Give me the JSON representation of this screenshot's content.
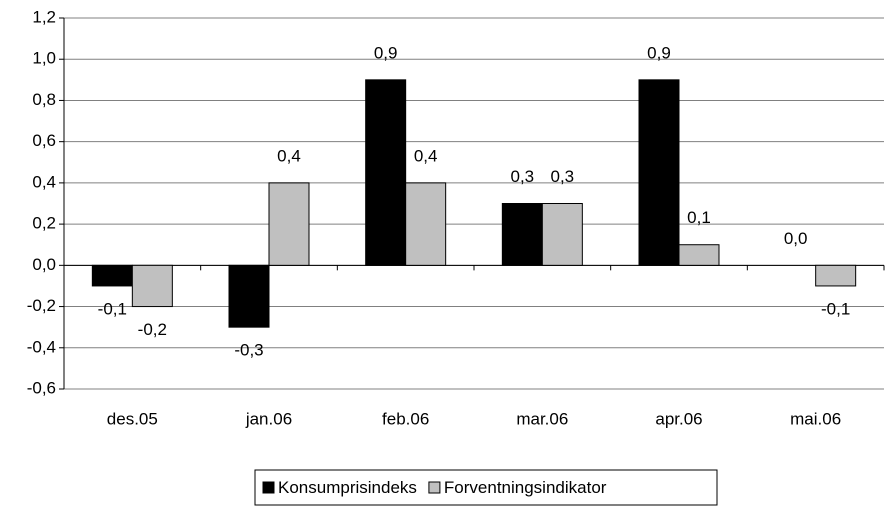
{
  "chart_data": {
    "type": "bar",
    "categories": [
      "des.05",
      "jan.06",
      "feb.06",
      "mar.06",
      "apr.06",
      "mai.06"
    ],
    "series": [
      {
        "name": "Konsumprisindeks",
        "color": "#000000",
        "values": [
          -0.1,
          -0.3,
          0.9,
          0.3,
          0.9,
          0.0
        ],
        "value_labels": [
          "-0,1",
          "-0,3",
          "0,9",
          "0,3",
          "0,9",
          "0,0"
        ]
      },
      {
        "name": "Forventningsindikator",
        "color": "#c0c0c0",
        "values": [
          -0.2,
          0.4,
          0.4,
          0.3,
          0.1,
          -0.1
        ],
        "value_labels": [
          "-0,2",
          "0,4",
          "0,4",
          "0,3",
          "0,1",
          "-0,1"
        ]
      }
    ],
    "ylim": [
      -0.6,
      1.2
    ],
    "yticks": [
      {
        "value": -0.6,
        "label": "-0,6"
      },
      {
        "value": -0.4,
        "label": "-0,4"
      },
      {
        "value": -0.2,
        "label": "-0,2"
      },
      {
        "value": 0,
        "label": "0,0"
      },
      {
        "value": 0.2,
        "label": "0,2"
      },
      {
        "value": 0.4,
        "label": "0,4"
      },
      {
        "value": 0.6,
        "label": "0,6"
      },
      {
        "value": 0.8,
        "label": "0,8"
      },
      {
        "value": 1.0,
        "label": "1,0"
      },
      {
        "value": 1.2,
        "label": "1,2"
      }
    ],
    "grid": true,
    "legend": "bottom"
  }
}
